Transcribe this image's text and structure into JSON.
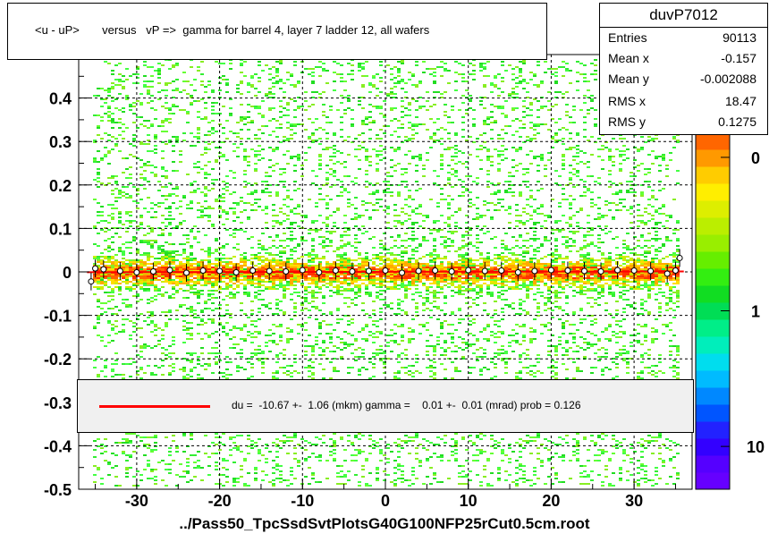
{
  "title": "<u - uP>       versus   vP =>  gamma for barrel 4, layer 7 ladder 12, all wafers",
  "stats": {
    "name": "duvP7012",
    "rows": [
      {
        "label": "Entries",
        "value": "90113"
      },
      {
        "label": "Mean x",
        "value": "-0.157"
      },
      {
        "label": "Mean y",
        "value": "-0.002088"
      },
      {
        "label": "RMS x",
        "value": "18.47"
      },
      {
        "label": "RMS y",
        "value": "0.1275"
      }
    ]
  },
  "fit_text": "du =  -10.67 +-  1.06 (mkm) gamma =    0.01 +-  0.01 (mrad) prob = 0.126",
  "footer": "../Pass50_TpcSsdSvtPlotsG40G100NFP25rCut0.5cm.root",
  "colors": {
    "fit_line": "#ff0000",
    "fit_box_bg": "#f0f0f0"
  },
  "chart_data": {
    "type": "heatmap",
    "xlim": [
      -37,
      37
    ],
    "ylim": [
      -0.5,
      0.5
    ],
    "x_ticks": [
      -30,
      -20,
      -10,
      0,
      10,
      20,
      30
    ],
    "y_ticks": [
      -0.5,
      -0.4,
      -0.3,
      -0.2,
      -0.1,
      0,
      0.1,
      0.2,
      0.3,
      0.4
    ],
    "y_tick_labels": [
      "-0.5",
      "-0.4",
      "-0.3",
      "-0.2",
      "-0.1",
      "0",
      "0.1",
      "0.2",
      "0.3",
      "0.4"
    ],
    "x_tick_labels": [
      "-30",
      "-20",
      "-10",
      "0",
      "10",
      "20",
      "30"
    ],
    "grid": true,
    "colorbar_ticks": [
      {
        "label": "1",
        "frac": 0.5
      },
      {
        "label": "10",
        "frac": 0.12
      },
      {
        "label": "0",
        "frac": 0.93
      }
    ],
    "fit_line": {
      "x": [
        -36,
        36
      ],
      "y": [
        -0.00067,
        0.00105
      ]
    },
    "profile_points": [
      [
        -35.5,
        -0.022
      ],
      [
        -35,
        0.008
      ],
      [
        -34,
        0.006
      ],
      [
        -32,
        0.002
      ],
      [
        -30,
        -0.001
      ],
      [
        -28,
        0.001
      ],
      [
        -26,
        0.004
      ],
      [
        -24,
        -0.002
      ],
      [
        -22,
        0.003
      ],
      [
        -20,
        0.002
      ],
      [
        -18,
        -0.001
      ],
      [
        -16,
        0.003
      ],
      [
        -14,
        0.002
      ],
      [
        -12,
        0.001
      ],
      [
        -10,
        0.004
      ],
      [
        -8,
        -0.001
      ],
      [
        -6,
        0.003
      ],
      [
        -4,
        0.001
      ],
      [
        -2,
        0.002
      ],
      [
        0,
        0.003
      ],
      [
        2,
        -0.002
      ],
      [
        4,
        0.002
      ],
      [
        6,
        0.003
      ],
      [
        8,
        0.001
      ],
      [
        10,
        0.004
      ],
      [
        12,
        0.002
      ],
      [
        14,
        0.003
      ],
      [
        16,
        -0.001
      ],
      [
        18,
        0.002
      ],
      [
        20,
        0.004
      ],
      [
        22,
        0.003
      ],
      [
        24,
        0.002
      ],
      [
        26,
        0.001
      ],
      [
        28,
        0.004
      ],
      [
        30,
        0.003
      ],
      [
        32,
        0.002
      ],
      [
        34,
        -0.004
      ],
      [
        35,
        0.003
      ],
      [
        35.5,
        0.032
      ]
    ]
  }
}
